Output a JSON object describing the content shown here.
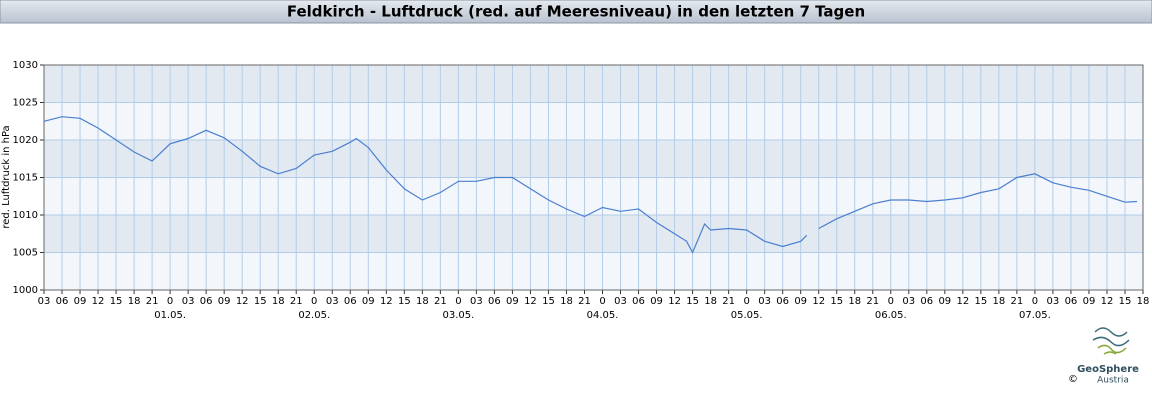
{
  "chart_data": {
    "type": "line",
    "title": "Feldkirch - Luftdruck (red. auf Meeresniveau) in den letzten 7 Tagen",
    "y_label": "red. Luftdruck in hPa",
    "brand": "GeoSphere",
    "brand_sub": "Austria",
    "copyright": "©",
    "grid": true,
    "band_colors": [
      "#f3f6fa",
      "#e3e9f1"
    ],
    "grid_color": "#b3cde8",
    "xlim": [
      0,
      183
    ],
    "ylim": [
      1000,
      1030
    ],
    "yticks": [
      1000,
      1005,
      1010,
      1015,
      1020,
      1025,
      1030
    ],
    "xticks": [
      {
        "value": 0,
        "label": "03"
      },
      {
        "value": 3,
        "label": "06"
      },
      {
        "value": 6,
        "label": "09"
      },
      {
        "value": 9,
        "label": "12"
      },
      {
        "value": 12,
        "label": "15"
      },
      {
        "value": 15,
        "label": "18"
      },
      {
        "value": 18,
        "label": "21"
      },
      {
        "value": 21,
        "label": "0"
      },
      {
        "value": 24,
        "label": "03"
      },
      {
        "value": 27,
        "label": "06"
      },
      {
        "value": 30,
        "label": "09"
      },
      {
        "value": 33,
        "label": "12"
      },
      {
        "value": 36,
        "label": "15"
      },
      {
        "value": 39,
        "label": "18"
      },
      {
        "value": 42,
        "label": "21"
      },
      {
        "value": 45,
        "label": "0"
      },
      {
        "value": 48,
        "label": "03"
      },
      {
        "value": 51,
        "label": "06"
      },
      {
        "value": 54,
        "label": "09"
      },
      {
        "value": 57,
        "label": "12"
      },
      {
        "value": 60,
        "label": "15"
      },
      {
        "value": 63,
        "label": "18"
      },
      {
        "value": 66,
        "label": "21"
      },
      {
        "value": 69,
        "label": "0"
      },
      {
        "value": 72,
        "label": "03"
      },
      {
        "value": 75,
        "label": "06"
      },
      {
        "value": 78,
        "label": "09"
      },
      {
        "value": 81,
        "label": "12"
      },
      {
        "value": 84,
        "label": "15"
      },
      {
        "value": 87,
        "label": "18"
      },
      {
        "value": 90,
        "label": "21"
      },
      {
        "value": 93,
        "label": "0"
      },
      {
        "value": 96,
        "label": "03"
      },
      {
        "value": 99,
        "label": "06"
      },
      {
        "value": 102,
        "label": "09"
      },
      {
        "value": 105,
        "label": "12"
      },
      {
        "value": 108,
        "label": "15"
      },
      {
        "value": 111,
        "label": "18"
      },
      {
        "value": 114,
        "label": "21"
      },
      {
        "value": 117,
        "label": "0"
      },
      {
        "value": 120,
        "label": "03"
      },
      {
        "value": 123,
        "label": "06"
      },
      {
        "value": 126,
        "label": "09"
      },
      {
        "value": 129,
        "label": "12"
      },
      {
        "value": 132,
        "label": "15"
      },
      {
        "value": 135,
        "label": "18"
      },
      {
        "value": 138,
        "label": "21"
      },
      {
        "value": 141,
        "label": "0"
      },
      {
        "value": 144,
        "label": "03"
      },
      {
        "value": 147,
        "label": "06"
      },
      {
        "value": 150,
        "label": "09"
      },
      {
        "value": 153,
        "label": "12"
      },
      {
        "value": 156,
        "label": "15"
      },
      {
        "value": 159,
        "label": "18"
      },
      {
        "value": 162,
        "label": "21"
      },
      {
        "value": 165,
        "label": "0"
      },
      {
        "value": 168,
        "label": "03"
      },
      {
        "value": 171,
        "label": "06"
      },
      {
        "value": 174,
        "label": "09"
      },
      {
        "value": 177,
        "label": "12"
      },
      {
        "value": 180,
        "label": "15"
      },
      {
        "value": 183,
        "label": "18"
      }
    ],
    "date_labels": [
      {
        "value": 21,
        "label": "01.05."
      },
      {
        "value": 45,
        "label": "02.05."
      },
      {
        "value": 69,
        "label": "03.05."
      },
      {
        "value": 93,
        "label": "04.05."
      },
      {
        "value": 117,
        "label": "05.05."
      },
      {
        "value": 141,
        "label": "06.05."
      },
      {
        "value": 165,
        "label": "07.05."
      }
    ],
    "x": [
      0,
      3,
      6,
      9,
      12,
      15,
      18,
      21,
      24,
      27,
      30,
      33,
      36,
      39,
      42,
      45,
      48,
      51,
      52,
      54,
      57,
      60,
      63,
      66,
      69,
      72,
      75,
      78,
      81,
      84,
      87,
      90,
      93,
      96,
      99,
      102,
      105,
      107,
      108,
      110,
      111,
      114,
      117,
      120,
      123,
      126,
      127,
      128,
      129,
      132,
      135,
      138,
      141,
      144,
      147,
      150,
      153,
      156,
      159,
      162,
      165,
      168,
      171,
      174,
      177,
      180,
      182
    ],
    "series": [
      {
        "name": "Luftdruck",
        "color": "#4a7fd0",
        "values": [
          1022.5,
          1023.1,
          1022.9,
          1021.6,
          1020,
          1018.4,
          1017.2,
          1019.5,
          1020.2,
          1021.3,
          1020.3,
          1018.5,
          1016.5,
          1015.5,
          1016.2,
          1018,
          1018.5,
          1019.7,
          1020.2,
          1019,
          1016,
          1013.5,
          1012,
          1013,
          1014.5,
          1014.5,
          1015,
          1015,
          1013.5,
          1012,
          1010.8,
          1009.8,
          1011,
          1010.5,
          1010.8,
          1009,
          1007.5,
          1006.5,
          1005,
          1008.8,
          1008,
          1008.2,
          1008,
          1006.5,
          1005.8,
          1006.5,
          1007.3,
          null,
          1008.2,
          1009.5,
          1010.5,
          1011.5,
          1012,
          1012,
          1011.8,
          1012,
          1012.3,
          1013,
          1013.5,
          1015,
          1015.5,
          1014.3,
          1013.7,
          1013.3,
          1012.5,
          1011.7,
          1011.8
        ]
      }
    ]
  }
}
